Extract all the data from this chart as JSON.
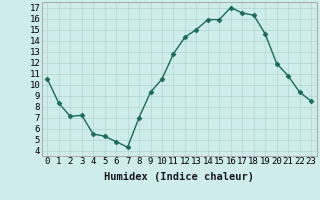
{
  "x": [
    0,
    1,
    2,
    3,
    4,
    5,
    6,
    7,
    8,
    9,
    10,
    11,
    12,
    13,
    14,
    15,
    16,
    17,
    18,
    19,
    20,
    21,
    22,
    23
  ],
  "y": [
    10.5,
    8.3,
    7.1,
    7.2,
    5.5,
    5.3,
    4.8,
    4.3,
    7.0,
    9.3,
    10.5,
    12.8,
    14.3,
    15.0,
    15.9,
    15.9,
    17.0,
    16.5,
    16.3,
    14.6,
    11.9,
    10.8,
    9.3,
    8.5
  ],
  "xlabel": "Humidex (Indice chaleur)",
  "xlim": [
    -0.5,
    23.5
  ],
  "ylim": [
    3.5,
    17.5
  ],
  "yticks": [
    4,
    5,
    6,
    7,
    8,
    9,
    10,
    11,
    12,
    13,
    14,
    15,
    16,
    17
  ],
  "xticks": [
    0,
    1,
    2,
    3,
    4,
    5,
    6,
    7,
    8,
    9,
    10,
    11,
    12,
    13,
    14,
    15,
    16,
    17,
    18,
    19,
    20,
    21,
    22,
    23
  ],
  "line_color": "#1a6b5a",
  "marker": "D",
  "marker_size": 2.5,
  "bg_color": "#ceecea",
  "grid_color": "#b8d8d4",
  "label_fontsize": 7.5,
  "tick_fontsize": 6.5
}
